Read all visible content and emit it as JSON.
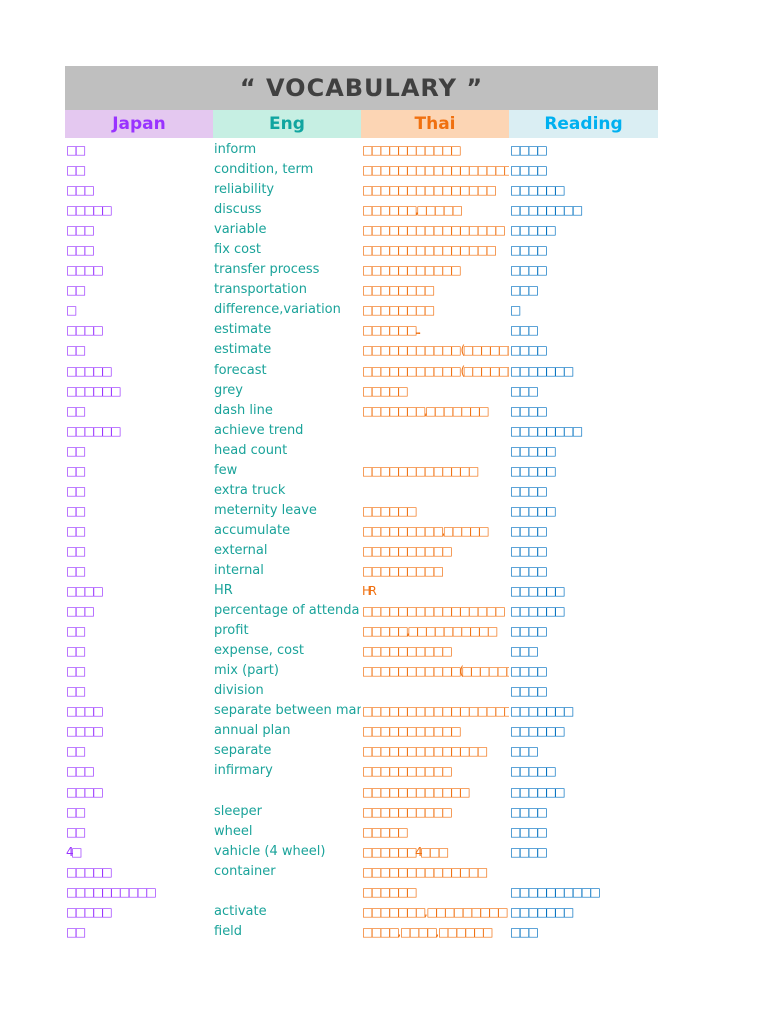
{
  "title": "“ VOCABULARY ”",
  "headers": {
    "japan": "Japan",
    "eng": "Eng",
    "thai": "Thai",
    "reading": "Reading"
  },
  "colors": {
    "japan": "#9933ff",
    "eng": "#1aa39a",
    "thai": "#f07010",
    "reading": "#0070c0",
    "title_bg": "#bfbfbf"
  },
  "rows": [
    {
      "jp": "□□",
      "en": "inform",
      "th": "□□□□□□□□□□□",
      "rd": "□□□□"
    },
    {
      "jp": "□□",
      "en": "condition, term",
      "th": "□□□□□□□□□□□□□□□□□□□",
      "rd": "□□□□"
    },
    {
      "jp": "□□□",
      "en": "reliability",
      "th": "□□□□□□□□□□□□□□□",
      "rd": "□□□□□□"
    },
    {
      "jp": "□□□□□",
      "en": "discuss",
      "th": "□□□□□□,□□□□□",
      "rd": "□□□□□□□□"
    },
    {
      "jp": "□□□",
      "en": "variable",
      "th": "□□□□□□□□□□□□□□□□",
      "rd": "□□□□□"
    },
    {
      "jp": "□□□",
      "en": "fix cost",
      "th": "□□□□□□□□□□□□□□□",
      "rd": "□□□□"
    },
    {
      "jp": "□□□□",
      "en": "transfer process",
      "th": "□□□□□□□□□□□",
      "rd": "□□□□"
    },
    {
      "jp": "□□",
      "en": "transportation",
      "th": "□□□□□□□□",
      "rd": "□□□"
    },
    {
      "jp": "□",
      "en": "difference,variation",
      "th": "□□□□□□□□",
      "rd": "□"
    },
    {
      "jp": "□□□□",
      "en": "estimate",
      "th": "□□□□□□...",
      "rd": "□□□"
    },
    {
      "jp": "□□",
      "en": "estimate",
      "th": "□□□□□□□□□□□ (□□□□□□□",
      "rd": "□□□□"
    },
    {
      "jp": "□□□□□",
      "en": "forecast",
      "th": "□□□□□□□□□□□ (□□□□□□)",
      "rd": "□□□□□□□"
    },
    {
      "jp": "□□□□□□",
      "en": "grey",
      "th": "□□□□□",
      "rd": "□□□"
    },
    {
      "jp": "□□",
      "en": "dash line",
      "th": "□□□□□□□,□□□□□□□",
      "rd": "□□□□"
    },
    {
      "jp": "□□□□□□",
      "en": "achieve trend",
      "th": "",
      "rd": "□□□□□□□□"
    },
    {
      "jp": "□□",
      "en": "head count",
      "th": "",
      "rd": "□□□□□"
    },
    {
      "jp": "□□",
      "en": "few",
      "th": "□□□□□□□□□□□□□",
      "rd": "□□□□□"
    },
    {
      "jp": "□□",
      "en": "extra truck",
      "th": "",
      "rd": "□□□□"
    },
    {
      "jp": "□□",
      "en": "meternity leave",
      "th": "□□□□□□",
      "rd": "□□□□□"
    },
    {
      "jp": "□□",
      "en": "accumulate",
      "th": "□□□□□□□□□,□□□□□",
      "rd": "□□□□"
    },
    {
      "jp": "□□",
      "en": "external",
      "th": "□□□□□□□□□□",
      "rd": "□□□□"
    },
    {
      "jp": "□□",
      "en": "internal",
      "th": "□□□□□□□□□",
      "rd": "□□□□"
    },
    {
      "jp": "□□□□",
      "en": "HR",
      "th": "HR",
      "rd": "□□□□□□"
    },
    {
      "jp": "□□□",
      "en": "percentage of attenda",
      "th": "□□□□□□□□□□□□□□□□",
      "rd": "□□□□□□"
    },
    {
      "jp": "□□",
      "en": "profit",
      "th": "□□□□□,□□□□□□□□□□",
      "rd": "□□□□"
    },
    {
      "jp": "□□",
      "en": "expense, cost",
      "th": "□□□□□□□□□□",
      "rd": "□□□"
    },
    {
      "jp": "□□",
      "en": "mix (part)",
      "th": "□□□□□□□□□□□(□□□□□□□□",
      "rd": "□□□□"
    },
    {
      "jp": "□□",
      "en": "division",
      "th": "",
      "rd": "□□□□"
    },
    {
      "jp": "□□□□",
      "en": "separate between man",
      "th": "□□□□□□□□□□□□□□□□□□□",
      "rd": "□□□□□□□"
    },
    {
      "jp": "□□□□",
      "en": "annual plan",
      "th": "□□□□□□□□□□□",
      "rd": "□□□□□□"
    },
    {
      "jp": "□□",
      "en": "separate",
      "th": "□□□□□□□□□□□□□□",
      "rd": "□□□"
    },
    {
      "jp": "□□□",
      "en": "infirmary",
      "th": "□□□□□□□□□□",
      "rd": "□□□□□"
    },
    {
      "jp": "□□□□",
      "en": "",
      "th": "□□□□□□□□□□□□",
      "rd": "□□□□□□"
    },
    {
      "jp": "□□",
      "en": "sleeper",
      "th": "□□□□□□□□□□",
      "rd": "□□□□"
    },
    {
      "jp": "□□",
      "en": "wheel",
      "th": "□□□□□",
      "rd": "□□□□"
    },
    {
      "jp": "4□",
      "en": "vahicle (4 wheel)",
      "th": "□□□□□□4□□□",
      "rd": "□□□□"
    },
    {
      "jp": "□□□□□",
      "en": "container",
      "th": "□□□□□□□□□□□□□□",
      "rd": ""
    },
    {
      "jp": "□□□□□□□□□□",
      "en": "",
      "th": "□□□□□□",
      "rd": "□□□□□□□□□□"
    },
    {
      "jp": "□□□□□",
      "en": "activate",
      "th": "□□□□□□□, □□□□□□□□□",
      "rd": "□□□□□□□"
    },
    {
      "jp": "□□",
      "en": "field",
      "th": "□□□□, □□□□, □□□□□□",
      "rd": "□□□"
    }
  ]
}
